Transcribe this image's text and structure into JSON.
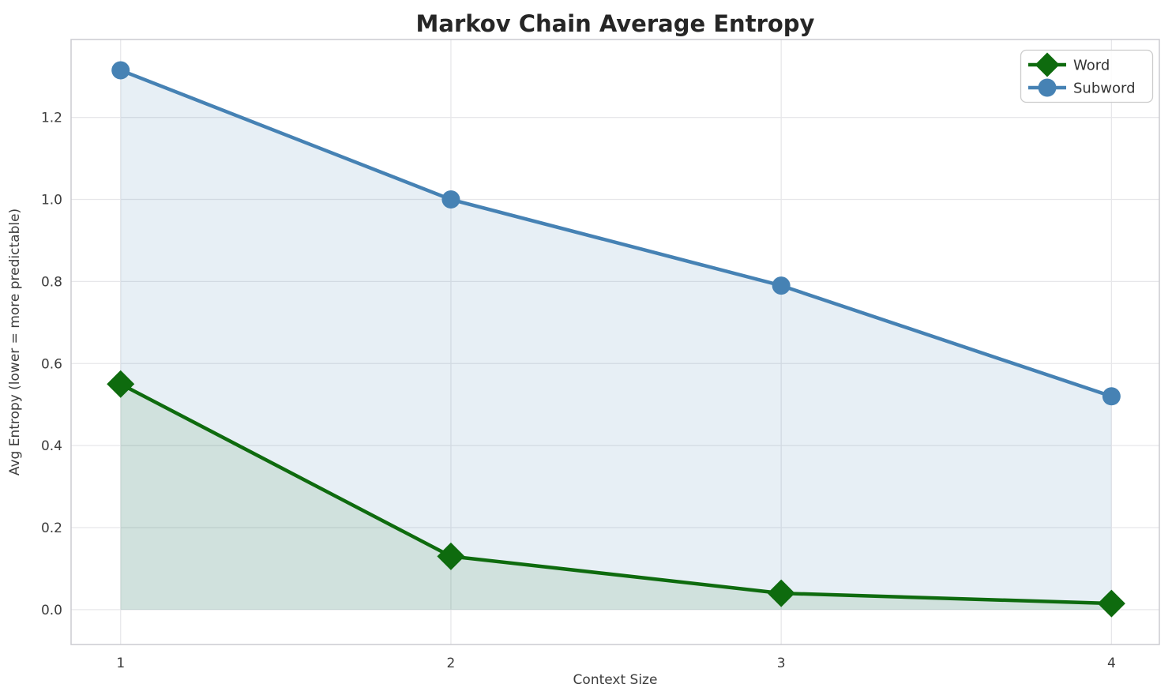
{
  "chart_data": {
    "type": "line",
    "title": "Markov Chain Average Entropy",
    "xlabel": "Context Size",
    "ylabel": "Avg Entropy (lower = more predictable)",
    "x": [
      1,
      2,
      3,
      4
    ],
    "xtick_labels": [
      "1",
      "2",
      "3",
      "4"
    ],
    "ytick_values": [
      0.0,
      0.2,
      0.4,
      0.6,
      0.8,
      1.0,
      1.2
    ],
    "ytick_labels": [
      "0.0",
      "0.2",
      "0.4",
      "0.6",
      "0.8",
      "1.0",
      "1.2"
    ],
    "xlim": [
      0.85,
      4.145
    ],
    "ylim": [
      -0.085,
      1.39
    ],
    "grid": true,
    "legend_position": "upper right",
    "series": [
      {
        "name": "Word",
        "color": "#0e6b0e",
        "marker": "diamond",
        "values": [
          0.55,
          0.13,
          0.04,
          0.015
        ],
        "area_fill": true,
        "fill_color": "rgba(14,107,14,0.10)"
      },
      {
        "name": "Subword",
        "color": "#4682b4",
        "marker": "circle",
        "values": [
          1.315,
          1.0,
          0.79,
          0.52
        ],
        "area_fill": true,
        "fill_color": "rgba(70,130,180,0.13)"
      }
    ],
    "colors": {
      "grid": "#e7e7ea",
      "spine": "#cbcbd0",
      "legend_border": "#cccccc",
      "legend_background": "rgba(255,255,255,0.85)"
    }
  }
}
